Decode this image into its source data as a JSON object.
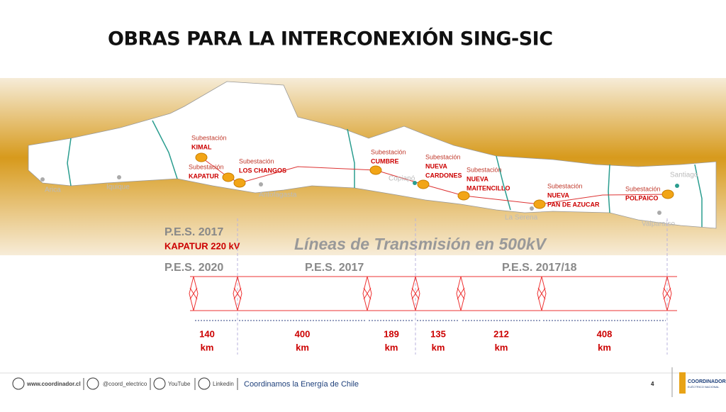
{
  "title": "OBRAS PARA LA INTERCONEXIÓN SING-SIC",
  "cities": [
    "Arica",
    "Iquique",
    "Antofagasta",
    "Copiapó",
    "La Serena",
    "Santiago",
    "Valparaíso"
  ],
  "substations": [
    {
      "label": "Subestación",
      "name": [
        "KIMAL"
      ]
    },
    {
      "label": "Subestación",
      "name": [
        "KAPATUR"
      ]
    },
    {
      "label": "Subestación",
      "name": [
        "LOS CHANGOS"
      ]
    },
    {
      "label": "Subestación",
      "name": [
        "CUMBRE"
      ]
    },
    {
      "label": "Subestación",
      "name": [
        "NUEVA",
        "CARDONES"
      ]
    },
    {
      "label": "Subestación",
      "name": [
        "NUEVA",
        "MAITENCILLO"
      ]
    },
    {
      "label": "Subestación",
      "name": [
        "NUEVA",
        "PAN DE AZUCAR"
      ]
    },
    {
      "label": "Subestación",
      "name": [
        "POLPAICO"
      ]
    }
  ],
  "kapatur": {
    "pes": "P.E.S. 2017",
    "line": "KAPATUR 220 kV"
  },
  "heading": "Líneas de Transmisión en 500kV",
  "pes": [
    "P.E.S. 2020",
    "P.E.S. 2017",
    "P.E.S. 2017/18"
  ],
  "distances": [
    {
      "value": "140",
      "unit": "km"
    },
    {
      "value": "400",
      "unit": "km"
    },
    {
      "value": "189",
      "unit": "km"
    },
    {
      "value": "135",
      "unit": "km"
    },
    {
      "value": "212",
      "unit": "km"
    },
    {
      "value": "408",
      "unit": "km"
    }
  ],
  "footer": {
    "website": "www.coordinador.cl",
    "twitter": "@coord_electrico",
    "youtube": "YouTube",
    "linkedin": "Linkedin",
    "slogan": "Coordinamos la Energía de Chile",
    "page": "4",
    "logo": "COORDINADOR",
    "logo_sub": "ELÉCTRICO NACIONAL"
  }
}
